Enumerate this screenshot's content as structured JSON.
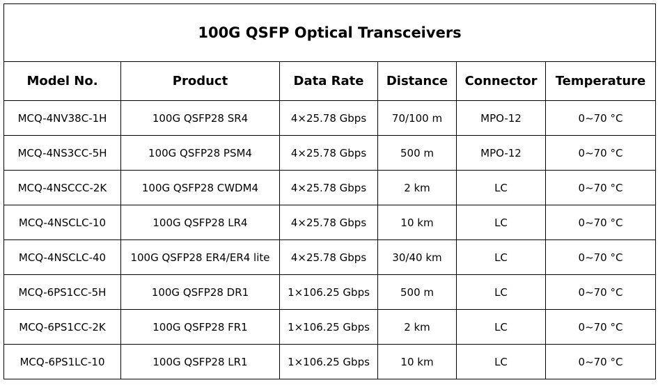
{
  "table": {
    "title": "100G QSFP Optical Transceivers",
    "headers": [
      "Model No.",
      "Product",
      "Data Rate",
      "Distance",
      "Connector",
      "Temperature"
    ],
    "rows": [
      [
        "MCQ-4NV38C-1H",
        "100G QSFP28 SR4",
        "4×25.78 Gbps",
        "70/100 m",
        "MPO-12",
        "0~70 °C"
      ],
      [
        "MCQ-4NS3CC-5H",
        "100G QSFP28 PSM4",
        "4×25.78 Gbps",
        "500 m",
        "MPO-12",
        "0~70 °C"
      ],
      [
        "MCQ-4NSCCC-2K",
        "100G QSFP28 CWDM4",
        "4×25.78 Gbps",
        "2 km",
        "LC",
        "0~70 °C"
      ],
      [
        "MCQ-4NSCLC-10",
        "100G QSFP28 LR4",
        "4×25.78 Gbps",
        "10 km",
        "LC",
        "0~70 °C"
      ],
      [
        "MCQ-4NSCLC-40",
        "100G QSFP28 ER4/ER4 lite",
        "4×25.78 Gbps",
        "30/40 km",
        "LC",
        "0~70 °C"
      ],
      [
        "MCQ-6PS1CC-5H",
        "100G QSFP28 DR1",
        "1×106.25 Gbps",
        "500 m",
        "LC",
        "0~70 °C"
      ],
      [
        "MCQ-6PS1CC-2K",
        "100G QSFP28 FR1",
        "1×106.25 Gbps",
        "2 km",
        "LC",
        "0~70 °C"
      ],
      [
        "MCQ-6PS1LC-10",
        "100G QSFP28 LR1",
        "1×106.25 Gbps",
        "10 km",
        "LC",
        "0~70 °C"
      ]
    ]
  }
}
